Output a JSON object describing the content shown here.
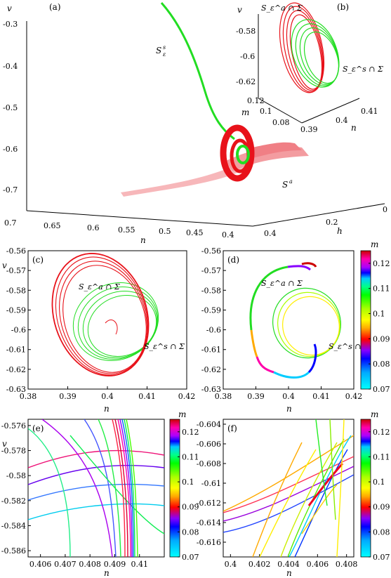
{
  "colors": {
    "red": "#e8121a",
    "green": "#22dd22",
    "pink": "#f4a0a4",
    "black": "#000000"
  },
  "colorbar": {
    "label": "m",
    "ticks": [
      "0.12",
      "0.11",
      "0.1",
      "0.09",
      "0.08",
      "0.07"
    ],
    "stops": [
      "#cc0033",
      "#ff00aa",
      "#8800ff",
      "#0000ff",
      "#00aaff",
      "#00ffcc",
      "#00ff00",
      "#aaff00",
      "#ffff00",
      "#ffaa00",
      "#ff0000",
      "#cc0000"
    ]
  },
  "chart_data": [
    {
      "panel": "(a)",
      "type": "line",
      "ylabel": "v",
      "xlabel": "n",
      "zlabel": "h",
      "v_ticks": [
        "-0.3",
        "-0.4",
        "-0.5",
        "-0.6",
        "-0.7"
      ],
      "n_ticks": [
        "0.7",
        "0.65",
        "0.6",
        "0.55",
        "0.5",
        "0.45",
        "0.4"
      ],
      "h_ticks": [
        "0.4",
        "0.2",
        "0"
      ],
      "annotations": [
        "S",
        "s",
        "ε",
        "a"
      ],
      "series": [
        {
          "name": "S_ε^s"
        },
        {
          "name": "S_ε^a"
        }
      ]
    },
    {
      "panel": "(b)",
      "type": "line",
      "ylabel": "v",
      "xlabel": "n",
      "zlabel": "m",
      "v_ticks": [
        "-0.58",
        "-0.6",
        "-0.62"
      ],
      "m_ticks": [
        "0.12",
        "0.1",
        "0.08"
      ],
      "n_ticks": [
        "0.39",
        "0.4",
        "0.41"
      ],
      "annotations": [
        "S_ε^a ∩ Σ",
        "S_ε^s ∩ Σ"
      ]
    },
    {
      "panel": "(c)",
      "type": "line",
      "ylabel": "v",
      "xlabel": "n",
      "xlim": [
        0.38,
        0.42
      ],
      "ylim": [
        -0.63,
        -0.56
      ],
      "x_ticks": [
        "0.38",
        "0.39",
        "0.4",
        "0.41",
        "0.42"
      ],
      "y_ticks": [
        "-0.56",
        "-0.57",
        "-0.58",
        "-0.59",
        "-0.6",
        "-0.61",
        "-0.62",
        "-0.63"
      ],
      "annotations": [
        "S_ε^a ∩ Σ",
        "S_ε^s ∩ Σ"
      ]
    },
    {
      "panel": "(d)",
      "type": "line",
      "xlabel": "n",
      "xlim": [
        0.38,
        0.42
      ],
      "ylim": [
        -0.63,
        -0.56
      ],
      "x_ticks": [
        "0.38",
        "0.39",
        "0.4",
        "0.41",
        "0.42"
      ],
      "y_ticks": [
        "-0.56",
        "-0.57",
        "-0.58",
        "-0.59",
        "-0.6",
        "-0.61",
        "-0.62",
        "-0.63"
      ],
      "annotations": [
        "S_ε^a ∩ Σ",
        "S_ε^s ∩ Σ"
      ]
    },
    {
      "panel": "(e)",
      "type": "line",
      "ylabel": "v",
      "xlabel": "n",
      "xlim": [
        0.4055,
        0.411
      ],
      "ylim": [
        -0.5865,
        -0.5755
      ],
      "x_ticks": [
        "0.406",
        "0.407",
        "0.408",
        "0.409",
        "0.41"
      ],
      "y_ticks": [
        "-0.576",
        "-0.578",
        "-0.58",
        "-0.582",
        "-0.584",
        "-0.586"
      ]
    },
    {
      "panel": "(f)",
      "type": "line",
      "xlabel": "n",
      "xlim": [
        0.3995,
        0.4085
      ],
      "ylim": [
        -0.6175,
        -0.6035
      ],
      "x_ticks": [
        "0.4",
        "0.402",
        "0.404",
        "0.406",
        "0.408"
      ],
      "y_ticks": [
        "-0.604",
        "-0.606",
        "-0.608",
        "-0.61",
        "-0.612",
        "-0.614",
        "-0.616"
      ]
    }
  ]
}
